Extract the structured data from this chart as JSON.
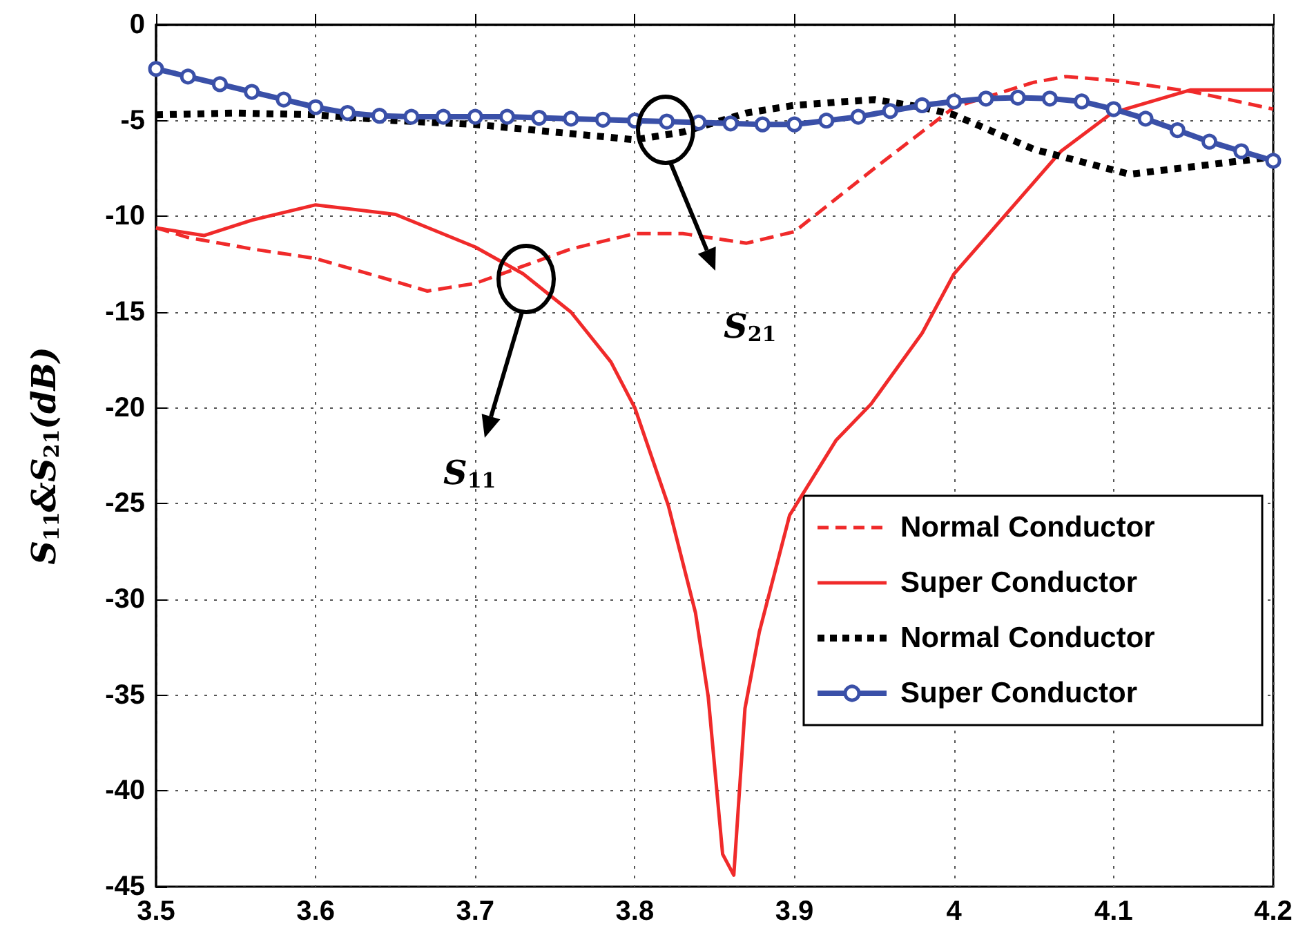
{
  "chart_data": {
    "type": "line",
    "ylabel": "S$_{11}$&S$_{21}$(dB)",
    "xlim": [
      3.5,
      4.2
    ],
    "xticks": [
      3.5,
      3.6,
      3.7,
      3.8,
      3.9,
      4,
      4.1,
      4.2
    ],
    "ylim": [
      -45,
      0
    ],
    "yticks": [
      -45,
      -40,
      -35,
      -30,
      -25,
      -20,
      -15,
      -10,
      -5,
      0
    ],
    "grid": true,
    "legend": "bottom right",
    "series": [
      {
        "name": "Normal Conductor",
        "color": "#f02a2a",
        "line_style": "dashed",
        "marker": "none",
        "x": [
          3.5,
          3.52,
          3.56,
          3.6,
          3.65,
          3.67,
          3.7,
          3.73,
          3.76,
          3.8,
          3.83,
          3.87,
          3.9,
          3.95,
          4.0,
          4.05,
          4.07,
          4.1,
          4.15,
          4.2
        ],
        "values": [
          -10.6,
          -11.1,
          -11.7,
          -12.2,
          -13.4,
          -13.9,
          -13.5,
          -12.6,
          -11.7,
          -10.9,
          -10.9,
          -11.4,
          -10.8,
          -7.5,
          -4.3,
          -3.0,
          -2.7,
          -2.9,
          -3.5,
          -4.4
        ]
      },
      {
        "name": "Super Conductor",
        "color": "#f02a2a",
        "line_style": "solid",
        "marker": "none",
        "x": [
          3.5,
          3.53,
          3.56,
          3.6,
          3.65,
          3.7,
          3.73,
          3.76,
          3.785,
          3.8,
          3.821,
          3.838,
          3.846,
          3.855,
          3.862,
          3.869,
          3.878,
          3.897,
          3.926,
          3.948,
          3.98,
          4.0,
          4.067,
          4.099,
          4.148,
          4.2
        ],
        "values": [
          -10.6,
          -11.0,
          -10.2,
          -9.4,
          -9.9,
          -11.6,
          -13.0,
          -15.0,
          -17.6,
          -20,
          -25.1,
          -30.7,
          -35.1,
          -43.3,
          -44.4,
          -35.7,
          -31.7,
          -25.6,
          -21.7,
          -19.8,
          -16.1,
          -13.0,
          -6.6,
          -4.6,
          -3.4,
          -3.4
        ]
      },
      {
        "name": "Normal Conductor",
        "color": "#000000",
        "line_style": "dotted",
        "marker": "none",
        "x": [
          3.5,
          3.55,
          3.6,
          3.65,
          3.7,
          3.75,
          3.8,
          3.83,
          3.87,
          3.9,
          3.95,
          3.98,
          4.0,
          4.05,
          4.11,
          4.15,
          4.2
        ],
        "values": [
          -4.7,
          -4.6,
          -4.7,
          -5.0,
          -5.2,
          -5.6,
          -6.0,
          -5.6,
          -4.6,
          -4.2,
          -3.9,
          -4.3,
          -4.7,
          -6.5,
          -7.8,
          -7.4,
          -6.9
        ]
      },
      {
        "name": "Super Conductor",
        "color": "#3a50a8",
        "line_style": "solid",
        "marker": "circle",
        "x": [
          3.5,
          3.52,
          3.54,
          3.56,
          3.58,
          3.6,
          3.62,
          3.64,
          3.66,
          3.68,
          3.7,
          3.72,
          3.74,
          3.76,
          3.78,
          3.8,
          3.82,
          3.84,
          3.86,
          3.88,
          3.9,
          3.92,
          3.94,
          3.96,
          3.98,
          4.0,
          4.02,
          4.04,
          4.06,
          4.08,
          4.1,
          4.12,
          4.14,
          4.16,
          4.18,
          4.2
        ],
        "values": [
          -2.3,
          -2.7,
          -3.1,
          -3.5,
          -3.9,
          -4.3,
          -4.6,
          -4.75,
          -4.8,
          -4.8,
          -4.8,
          -4.8,
          -4.85,
          -4.9,
          -4.95,
          -5.0,
          -5.05,
          -5.1,
          -5.15,
          -5.2,
          -5.2,
          -5.0,
          -4.8,
          -4.5,
          -4.2,
          -4.0,
          -3.85,
          -3.8,
          -3.85,
          -4.0,
          -4.4,
          -4.9,
          -5.5,
          -6.1,
          -6.6,
          -7.1
        ]
      }
    ],
    "annotations": [
      "S$_{11}$",
      "S$_{21}$"
    ]
  }
}
